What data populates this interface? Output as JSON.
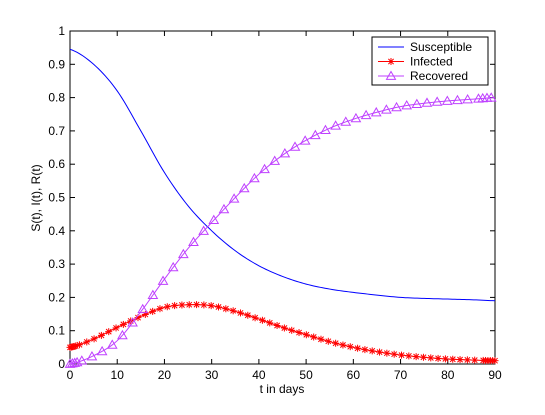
{
  "chart_data": {
    "type": "line",
    "title": "",
    "xlabel": "t in days",
    "ylabel": "S(t), I(t), R(t)",
    "xlim": [
      0,
      90
    ],
    "ylim": [
      0,
      1
    ],
    "xticks": [
      0,
      10,
      20,
      30,
      40,
      50,
      60,
      70,
      80,
      90
    ],
    "yticks": [
      0,
      0.1,
      0.2,
      0.3,
      0.4,
      0.5,
      0.6,
      0.7,
      0.8,
      0.9,
      1
    ],
    "xtick_labels": [
      "0",
      "10",
      "20",
      "30",
      "40",
      "50",
      "60",
      "70",
      "80",
      "90"
    ],
    "ytick_labels": [
      "0",
      "0.1",
      "0.2",
      "0.3",
      "0.4",
      "0.5",
      "0.6",
      "0.7",
      "0.8",
      "0.9",
      "1"
    ],
    "grid": false,
    "legend_position": "top-right",
    "x": [
      0,
      5,
      10,
      15,
      20,
      25,
      30,
      35,
      40,
      45,
      50,
      55,
      60,
      65,
      70,
      75,
      80,
      85,
      90
    ],
    "series": [
      {
        "name": "Susceptible",
        "color": "#0000ff",
        "marker": "none",
        "values": [
          0.945,
          0.9,
          0.82,
          0.7,
          0.575,
          0.475,
          0.4,
          0.34,
          0.295,
          0.263,
          0.24,
          0.225,
          0.215,
          0.207,
          0.2,
          0.197,
          0.195,
          0.193,
          0.19
        ]
      },
      {
        "name": "Infected",
        "color": "#ff0000",
        "marker": "asterisk",
        "values": [
          0.05,
          0.075,
          0.11,
          0.143,
          0.17,
          0.178,
          0.175,
          0.158,
          0.135,
          0.11,
          0.088,
          0.067,
          0.05,
          0.037,
          0.027,
          0.02,
          0.015,
          0.012,
          0.01
        ]
      },
      {
        "name": "Recovered",
        "color": "#bf40ff",
        "marker": "triangle",
        "values": [
          0.0,
          0.025,
          0.07,
          0.157,
          0.255,
          0.347,
          0.425,
          0.5,
          0.57,
          0.627,
          0.672,
          0.708,
          0.735,
          0.756,
          0.773,
          0.783,
          0.79,
          0.795,
          0.8
        ]
      }
    ]
  }
}
